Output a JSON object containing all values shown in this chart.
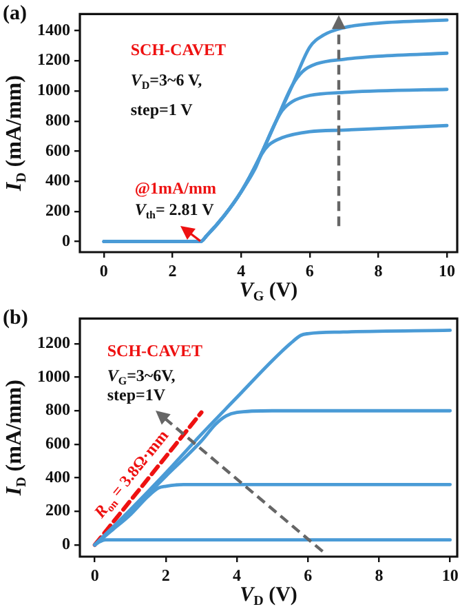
{
  "chart_data": [
    {
      "type": "line",
      "title": "(a)",
      "xlabel": "V$_{G}$ (V)",
      "ylabel": "I$_{D}$ (mA/mm)",
      "xlim": [
        -0.7,
        10.3
      ],
      "xticks": [
        0,
        2,
        4,
        6,
        8,
        10
      ],
      "ylim": [
        -70,
        1510
      ],
      "yticks": [
        0,
        200,
        400,
        600,
        800,
        1000,
        1200,
        1400
      ],
      "grid": false,
      "legend": false,
      "marker": "none",
      "annotations": [
        "SCH-CAVET",
        "V$_{D}$=3~6 V,",
        "step=1 V",
        "@1mA/mm",
        "V$_{th}$= 2.81 V"
      ],
      "series": [
        {
          "color": "#4a9bd6",
          "x": [
            0,
            1,
            2,
            2.81,
            3,
            3.5,
            4,
            4.4,
            4.6,
            4.8,
            5.2,
            6,
            7,
            8,
            10
          ],
          "values": [
            0,
            0,
            0,
            0,
            40,
            170,
            330,
            480,
            580,
            640,
            690,
            730,
            740,
            750,
            770
          ]
        },
        {
          "color": "#4a9bd6",
          "x": [
            0,
            1,
            2,
            2.81,
            3,
            3.5,
            4,
            4.5,
            5,
            5.2,
            5.5,
            6,
            7,
            8,
            10
          ],
          "values": [
            0,
            0,
            0,
            0,
            40,
            170,
            330,
            540,
            790,
            870,
            930,
            970,
            990,
            1000,
            1010
          ]
        },
        {
          "color": "#4a9bd6",
          "x": [
            0,
            1,
            2,
            2.81,
            3,
            3.5,
            4,
            4.5,
            5,
            5.5,
            5.8,
            6.2,
            7,
            8,
            10
          ],
          "values": [
            0,
            0,
            0,
            0,
            40,
            170,
            330,
            540,
            790,
            1040,
            1130,
            1180,
            1210,
            1230,
            1250
          ]
        },
        {
          "color": "#4a9bd6",
          "x": [
            0,
            1,
            2,
            2.81,
            3,
            3.5,
            4,
            4.5,
            5,
            5.5,
            6,
            6.4,
            7,
            8,
            10
          ],
          "values": [
            0,
            0,
            0,
            0,
            40,
            170,
            330,
            540,
            790,
            1040,
            1290,
            1370,
            1420,
            1450,
            1470
          ]
        }
      ]
    },
    {
      "type": "line",
      "title": "(b)",
      "xlabel": "V$_{D}$ (V)",
      "ylabel": "I$_{D}$ (mA/mm)",
      "xlim": [
        -0.42,
        10.2
      ],
      "xticks": [
        0,
        2,
        4,
        6,
        8,
        10
      ],
      "ylim": [
        -70,
        1350
      ],
      "yticks": [
        0,
        200,
        400,
        600,
        800,
        1000,
        1200
      ],
      "grid": false,
      "legend": false,
      "marker": "none",
      "annotations": [
        "SCH-CAVET",
        "V$_{G}$=3~6V,",
        "step=1V",
        "R$_{on}$ = 3.8Ω·mm"
      ],
      "series": [
        {
          "color": "#4a9bd6",
          "x": [
            0,
            0.15,
            0.3,
            0.6,
            10
          ],
          "values": [
            0,
            20,
            30,
            30,
            30
          ]
        },
        {
          "color": "#4a9bd6",
          "x": [
            0,
            0.5,
            1,
            1.5,
            1.8,
            2,
            2.5,
            10
          ],
          "values": [
            0,
            90,
            180,
            290,
            340,
            350,
            360,
            360
          ]
        },
        {
          "color": "#4a9bd6",
          "x": [
            0,
            1,
            2,
            3,
            3.4,
            3.7,
            4,
            5,
            10
          ],
          "values": [
            0,
            200,
            410,
            620,
            720,
            770,
            790,
            800,
            800
          ]
        },
        {
          "color": "#4a9bd6",
          "x": [
            0,
            1,
            2,
            3,
            4,
            5,
            5.5,
            5.8,
            6,
            7,
            10
          ],
          "values": [
            0,
            210,
            430,
            660,
            880,
            1100,
            1200,
            1250,
            1260,
            1270,
            1280
          ]
        },
        {
          "type": "line",
          "color": "#ee1111",
          "line_style": "dashed",
          "x": [
            0,
            3
          ],
          "values": [
            0,
            790
          ]
        }
      ]
    }
  ]
}
